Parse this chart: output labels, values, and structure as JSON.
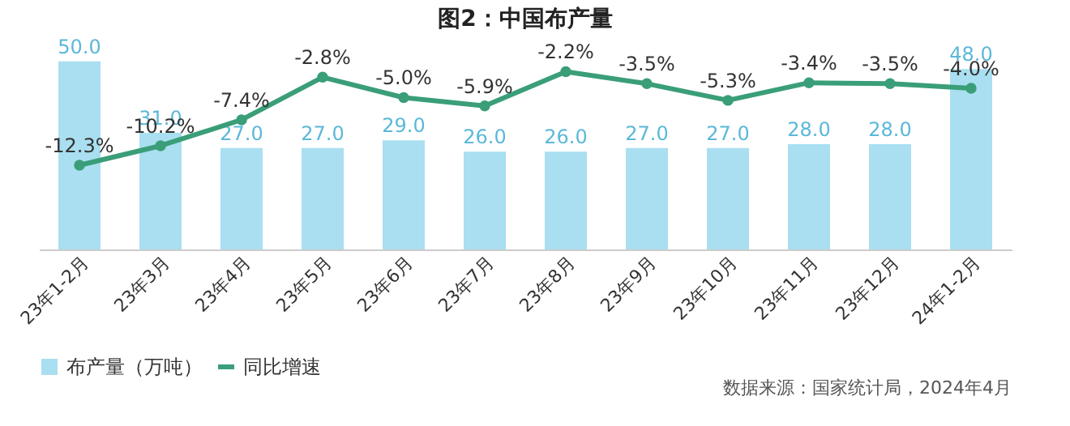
{
  "chart_data": {
    "type": "bar",
    "title": "图2：中国布产量",
    "legend": "bottom",
    "categories": [
      "23年1-2月",
      "23年3月",
      "23年4月",
      "23年5月",
      "23年6月",
      "23年7月",
      "23年8月",
      "23年9月",
      "23年10月",
      "23年11月",
      "23年12月",
      "24年1-2月"
    ],
    "series": [
      {
        "name": "布产量（万吨）",
        "color": "#a9dff0",
        "values": [
          50.0,
          31.0,
          27.0,
          27.0,
          29.0,
          26.0,
          26.0,
          27.0,
          27.0,
          28.0,
          28.0,
          48.0
        ],
        "value_labels": [
          "50.0",
          "31.0",
          "27.0",
          "27.0",
          "29.0",
          "26.0",
          "26.0",
          "27.0",
          "27.0",
          "28.0",
          "28.0",
          "48.0"
        ]
      },
      {
        "name": "同比增速",
        "type": "line",
        "axis": "y2",
        "color": "#3a9e78",
        "marker": "circle",
        "values": [
          -12.3,
          -10.2,
          -7.4,
          -2.8,
          -5.0,
          -5.9,
          -2.2,
          -3.5,
          -5.3,
          -3.4,
          -3.5,
          -4.0
        ],
        "value_labels": [
          "-12.3%",
          "-10.2%",
          "-7.4%",
          "-2.8%",
          "-5.0%",
          "-5.9%",
          "-2.2%",
          "-3.5%",
          "-5.3%",
          "-3.4%",
          "-3.5%",
          "-4.0%"
        ]
      }
    ],
    "annotations": [
      "数据来源：国家统计局，2024年4月"
    ]
  }
}
